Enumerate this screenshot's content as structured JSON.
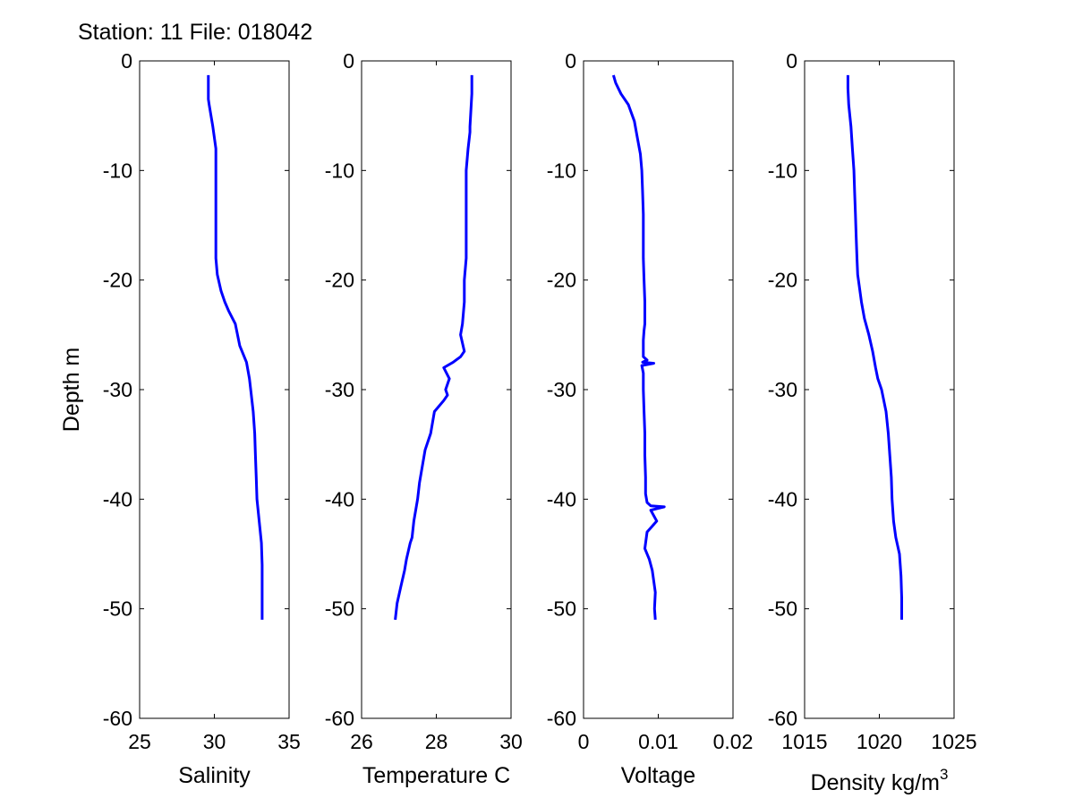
{
  "title": "Station: 11 File: 018042",
  "ylabel": "Depth m",
  "colors": {
    "line": "#0000ff",
    "axes": "#000000",
    "background": "#ffffff"
  },
  "chart_data": [
    {
      "type": "line",
      "title": "Station: 11 File: 018042",
      "xlabel": "Salinity",
      "ylabel": "Depth m",
      "xlim": [
        25,
        35
      ],
      "ylim": [
        -60,
        0
      ],
      "xticks": [
        25,
        30,
        35
      ],
      "xtick_labels": [
        "25",
        "30",
        "35"
      ],
      "yticks": [
        0,
        -10,
        -20,
        -30,
        -40,
        -50,
        -60
      ],
      "ytick_labels": [
        "0",
        "-10",
        "-20",
        "-30",
        "-40",
        "-50",
        "-60"
      ],
      "grid": false,
      "series": [
        {
          "color": "#0000ff",
          "x": [
            29.6,
            29.6,
            29.6,
            29.65,
            29.9,
            30.1,
            30.1,
            30.1,
            30.1,
            30.1,
            30.1,
            30.2,
            30.45,
            30.7,
            30.95,
            31.4,
            31.7,
            32.15,
            32.35,
            32.45,
            32.6,
            32.7,
            32.75,
            32.8,
            32.85,
            33.0,
            33.15,
            33.2,
            33.2
          ],
          "y": [
            -1.3,
            -2.5,
            -3.5,
            -4,
            -6,
            -8,
            -10,
            -12,
            -14,
            -16,
            -18,
            -19.5,
            -21,
            -22,
            -22.8,
            -24,
            -26,
            -27.5,
            -29,
            -30.2,
            -32,
            -34,
            -36,
            -38,
            -40,
            -42,
            -44,
            -46,
            -51
          ]
        }
      ]
    },
    {
      "type": "line",
      "xlabel": "Temperature C",
      "xlim": [
        26,
        30
      ],
      "ylim": [
        -60,
        0
      ],
      "xticks": [
        26,
        28,
        30
      ],
      "xtick_labels": [
        "26",
        "28",
        "30"
      ],
      "yticks": [
        0,
        -10,
        -20,
        -30,
        -40,
        -50,
        -60
      ],
      "ytick_labels": [
        "0",
        "-10",
        "-20",
        "-30",
        "-40",
        "-50",
        "-60"
      ],
      "grid": false,
      "series": [
        {
          "color": "#0000ff",
          "x": [
            28.95,
            28.95,
            28.9,
            28.9,
            28.85,
            28.8,
            28.8,
            28.8,
            28.8,
            28.8,
            28.75,
            28.75,
            28.7,
            28.65,
            28.75,
            28.65,
            28.45,
            28.2,
            28.35,
            28.25,
            28.3,
            28.2,
            27.95,
            27.85,
            27.7,
            27.65,
            27.55,
            27.5,
            27.4,
            27.35,
            27.3,
            27.2,
            27.15,
            27.05,
            26.95,
            26.9
          ],
          "y": [
            -1.3,
            -3,
            -6,
            -6.5,
            -8,
            -10,
            -12,
            -14,
            -16,
            -18,
            -20,
            -22,
            -24,
            -25,
            -26.5,
            -27,
            -27.5,
            -28,
            -29,
            -30,
            -30.5,
            -31,
            -32,
            -34,
            -35.5,
            -36.5,
            -38.5,
            -40,
            -42,
            -43.5,
            -44,
            -45.5,
            -46.5,
            -48,
            -49.5,
            -51
          ]
        }
      ]
    },
    {
      "type": "line",
      "xlabel": "Voltage",
      "xlim": [
        0,
        0.02
      ],
      "ylim": [
        -60,
        0
      ],
      "xticks": [
        0,
        0.01,
        0.02
      ],
      "xtick_labels": [
        "0",
        "0.01",
        "0.02"
      ],
      "yticks": [
        0,
        -10,
        -20,
        -30,
        -40,
        -50,
        -60
      ],
      "ytick_labels": [
        "0",
        "-10",
        "-20",
        "-30",
        "-40",
        "-50",
        "-60"
      ],
      "grid": false,
      "series": [
        {
          "color": "#0000ff",
          "x": [
            0.004,
            0.0043,
            0.005,
            0.006,
            0.0068,
            0.0072,
            0.0076,
            0.0078,
            0.0079,
            0.008,
            0.008,
            0.008,
            0.0081,
            0.0082,
            0.0082,
            0.0081,
            0.008,
            0.008,
            0.008,
            0.0085,
            0.0079,
            0.0094,
            0.0078,
            0.008,
            0.008,
            0.0081,
            0.0082,
            0.0082,
            0.0083,
            0.0083,
            0.0085,
            0.009,
            0.0108,
            0.009,
            0.0098,
            0.0085,
            0.0082,
            0.0088,
            0.0092,
            0.0094,
            0.0096,
            0.0095,
            0.0096
          ],
          "y": [
            -1.3,
            -2,
            -3,
            -4,
            -5.5,
            -7,
            -8.5,
            -10,
            -12,
            -14,
            -16,
            -18,
            -20,
            -22,
            -24,
            -24.6,
            -25.5,
            -26.5,
            -27,
            -27.3,
            -27.5,
            -27.6,
            -27.8,
            -28.5,
            -30,
            -32,
            -34,
            -36,
            -38,
            -39.5,
            -40.3,
            -40.6,
            -40.7,
            -41,
            -42,
            -43,
            -44.5,
            -45.5,
            -46.5,
            -47.5,
            -48.5,
            -50,
            -51
          ]
        }
      ]
    },
    {
      "type": "line",
      "xlabel": "Density kg/m",
      "xlabel_superscript": "3",
      "xlim": [
        1015,
        1025
      ],
      "ylim": [
        -60,
        0
      ],
      "xticks": [
        1015,
        1020,
        1025
      ],
      "xtick_labels": [
        "1015",
        "1020",
        "1025"
      ],
      "yticks": [
        0,
        -10,
        -20,
        -30,
        -40,
        -50,
        -60
      ],
      "ytick_labels": [
        "0",
        "-10",
        "-20",
        "-30",
        "-40",
        "-50",
        "-60"
      ],
      "grid": false,
      "series": [
        {
          "color": "#0000ff",
          "x": [
            1017.9,
            1017.9,
            1017.95,
            1018.1,
            1018.2,
            1018.3,
            1018.35,
            1018.4,
            1018.45,
            1018.5,
            1018.55,
            1018.65,
            1018.8,
            1019.0,
            1019.3,
            1019.55,
            1019.75,
            1019.9,
            1020.15,
            1020.45,
            1020.6,
            1020.7,
            1020.8,
            1020.85,
            1020.95,
            1021.1,
            1021.35,
            1021.45,
            1021.5,
            1021.5
          ],
          "y": [
            -1.3,
            -2.5,
            -4,
            -6,
            -8,
            -10,
            -12,
            -14,
            -16,
            -18,
            -19.5,
            -20.5,
            -22,
            -23.5,
            -25,
            -26.5,
            -28,
            -29,
            -30,
            -32,
            -34,
            -36,
            -38,
            -40,
            -42,
            -43.5,
            -45,
            -47,
            -49,
            -51
          ]
        }
      ]
    }
  ]
}
